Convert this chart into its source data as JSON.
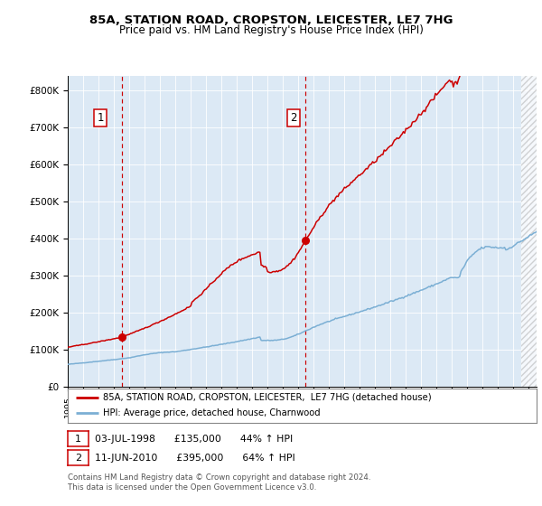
{
  "title1": "85A, STATION ROAD, CROPSTON, LEICESTER, LE7 7HG",
  "title2": "Price paid vs. HM Land Registry's House Price Index (HPI)",
  "ylabel_ticks": [
    "£0",
    "£100K",
    "£200K",
    "£300K",
    "£400K",
    "£500K",
    "£600K",
    "£700K",
    "£800K"
  ],
  "ytick_vals": [
    0,
    100000,
    200000,
    300000,
    400000,
    500000,
    600000,
    700000,
    800000
  ],
  "ylim": [
    0,
    840000
  ],
  "xlim_start": 1995.0,
  "xlim_end": 2025.5,
  "sale1_date": 1998.503,
  "sale1_price": 135000,
  "sale2_date": 2010.44,
  "sale2_price": 395000,
  "legend_property": "85A, STATION ROAD, CROPSTON, LEICESTER,  LE7 7HG (detached house)",
  "legend_hpi": "HPI: Average price, detached house, Charnwood",
  "note1_date": "03-JUL-1998",
  "note1_price": "£135,000",
  "note1_hpi": "44% ↑ HPI",
  "note2_date": "11-JUN-2010",
  "note2_price": "£395,000",
  "note2_hpi": "64% ↑ HPI",
  "footer": "Contains HM Land Registry data © Crown copyright and database right 2024.\nThis data is licensed under the Open Government Licence v3.0.",
  "hpi_color": "#7bafd4",
  "property_color": "#cc0000",
  "bg_color": "#dce9f5",
  "hatch_start": 2024.5,
  "title1_fontsize": 9.5,
  "title2_fontsize": 8.5
}
